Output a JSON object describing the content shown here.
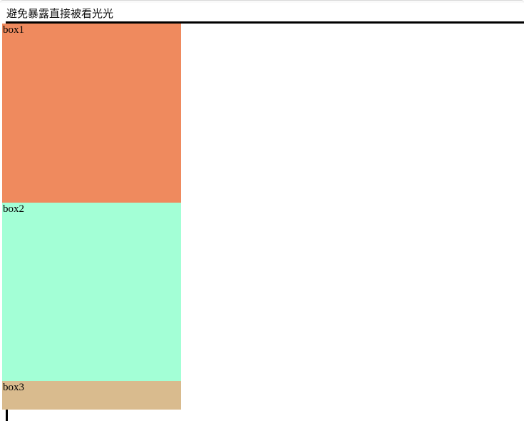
{
  "page": {
    "heading": "避免暴露直接被看光光"
  },
  "boxes": [
    {
      "label": "box1",
      "color": "#EF8A5E"
    },
    {
      "label": "box2",
      "color": "#A3FFD6"
    },
    {
      "label": "box3",
      "color": "#D9BB8E"
    }
  ],
  "colors": {
    "container_border": "#000000",
    "background": "#FFFFFF"
  }
}
